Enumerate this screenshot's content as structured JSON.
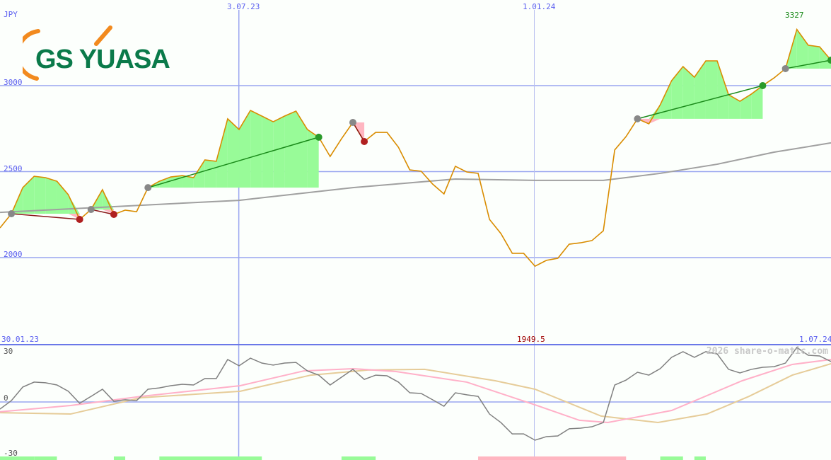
{
  "chart_data": [
    {
      "type": "line",
      "unit_label": "JPY",
      "y_ticks": [
        "3000",
        "2500",
        "2000"
      ],
      "y_tick_values": [
        3000,
        2500,
        2000
      ],
      "x_ticks": [
        "3.07.23",
        "1.01.24"
      ],
      "x_tick_index": [
        21,
        47
      ],
      "start_date": "30.01.23",
      "end_date": "1.07.24",
      "max_label": "3327",
      "min_label": "1949.5",
      "grid": true,
      "colors": {
        "price": "#d98c00",
        "ma": "#a0a0a0",
        "win": "#98fb98",
        "loss": "#ffb6c1",
        "grid": "#9aa6f0"
      },
      "price": [
        2173,
        2255,
        2407,
        2473,
        2465,
        2444,
        2366,
        2222,
        2280,
        2395,
        2251,
        2276,
        2267,
        2407,
        2444,
        2469,
        2477,
        2465,
        2568,
        2560,
        2807,
        2745,
        2856,
        2823,
        2790,
        2823,
        2852,
        2745,
        2700,
        2588,
        2691,
        2786,
        2675,
        2728,
        2728,
        2642,
        2510,
        2502,
        2428,
        2370,
        2531,
        2498,
        2490,
        2222,
        2140,
        2025,
        2025,
        1950,
        1984,
        1996,
        2078,
        2086,
        2099,
        2156,
        2626,
        2704,
        2807,
        2778,
        2889,
        3029,
        3111,
        3049,
        3144,
        3144,
        2947,
        2909,
        2951,
        3000,
        3045,
        3099,
        3327,
        3235,
        3226,
        3148
      ],
      "ma": [
        [
          0,
          2263
        ],
        [
          21,
          2333
        ],
        [
          31,
          2407
        ],
        [
          40,
          2457
        ],
        [
          47,
          2449
        ],
        [
          53,
          2449
        ],
        [
          58,
          2490
        ],
        [
          63,
          2543
        ],
        [
          68,
          2613
        ],
        [
          73,
          2667
        ]
      ],
      "trades": [
        {
          "entry": 1,
          "exit": 7,
          "result": "loss"
        },
        {
          "entry": 8,
          "exit": 10,
          "result": "loss"
        },
        {
          "entry": 13,
          "exit": 28,
          "result": "win"
        },
        {
          "entry": 31,
          "exit": 32,
          "result": "loss"
        },
        {
          "entry": 56,
          "exit": 67,
          "result": "win"
        },
        {
          "entry": 69,
          "exit": 73,
          "result": "win"
        }
      ]
    },
    {
      "type": "line",
      "y_ticks": [
        "30",
        "0",
        "-30"
      ],
      "y_tick_values": [
        30,
        0,
        -30
      ],
      "ylim": [
        -30,
        30
      ],
      "colors": {
        "osc": "#808080",
        "signal1": "#ffb0c8",
        "signal2": "#e6cc99"
      },
      "osc": [
        -4.2,
        0.8,
        8.8,
        11.7,
        11.3,
        10,
        6.3,
        -0.8,
        3.3,
        7.5,
        0.4,
        1.3,
        0.8,
        7.5,
        8.3,
        9.6,
        10.4,
        10,
        13.8,
        13.8,
        25,
        21.3,
        25.8,
        22.9,
        21.7,
        22.9,
        23.3,
        18.3,
        15.8,
        10,
        14.6,
        19.2,
        13.3,
        15.8,
        15.4,
        11.7,
        5.4,
        5,
        1.3,
        -2.5,
        5.4,
        4.2,
        3.3,
        -7.1,
        -12.1,
        -18.8,
        -18.8,
        -22.5,
        -20.4,
        -20,
        -15.8,
        -15.4,
        -14.6,
        -12.1,
        10,
        12.9,
        17.5,
        15.8,
        19.6,
        26.3,
        29.6,
        26.3,
        29.6,
        28.3,
        19.2,
        17.1,
        19.2,
        20.4,
        20.8,
        22.9,
        32.1,
        27.5,
        27.1,
        23.8
      ],
      "signal1": [
        [
          0,
          -5.8
        ],
        [
          6.2,
          -2.1
        ],
        [
          12.4,
          3.3
        ],
        [
          21.1,
          9.6
        ],
        [
          26.7,
          18.3
        ],
        [
          31,
          19.6
        ],
        [
          34.8,
          17.9
        ],
        [
          41,
          11.7
        ],
        [
          47,
          -1.7
        ],
        [
          50.9,
          -10.8
        ],
        [
          53.4,
          -12.1
        ],
        [
          59,
          -5
        ],
        [
          65.2,
          12.5
        ],
        [
          69.6,
          22.1
        ],
        [
          73,
          25
        ]
      ],
      "signal2": [
        [
          0,
          -6.3
        ],
        [
          6.2,
          -7.1
        ],
        [
          12.4,
          2.5
        ],
        [
          21.1,
          6.3
        ],
        [
          27.3,
          15.8
        ],
        [
          32.3,
          18.8
        ],
        [
          37.3,
          19.2
        ],
        [
          43.5,
          12.5
        ],
        [
          47,
          7.5
        ],
        [
          52.8,
          -8.3
        ],
        [
          57.8,
          -12.1
        ],
        [
          62.1,
          -7.1
        ],
        [
          65.8,
          3.3
        ],
        [
          69.6,
          15.8
        ],
        [
          73,
          22.5
        ]
      ],
      "signal_bars": [
        {
          "from": 0,
          "to": 3,
          "color": "win"
        },
        {
          "from": 3,
          "to": 5,
          "color": "win"
        },
        {
          "from": 10,
          "to": 11,
          "color": "win"
        },
        {
          "from": 14,
          "to": 23,
          "color": "win"
        },
        {
          "from": 30,
          "to": 33,
          "color": "win"
        },
        {
          "from": 42,
          "to": 55,
          "color": "loss"
        },
        {
          "from": 58,
          "to": 60,
          "color": "win"
        },
        {
          "from": 61,
          "to": 62,
          "color": "win"
        }
      ]
    }
  ],
  "brand": {
    "logo_text": "GS YUASA"
  },
  "watermark": "2026 share-o-matic.com"
}
